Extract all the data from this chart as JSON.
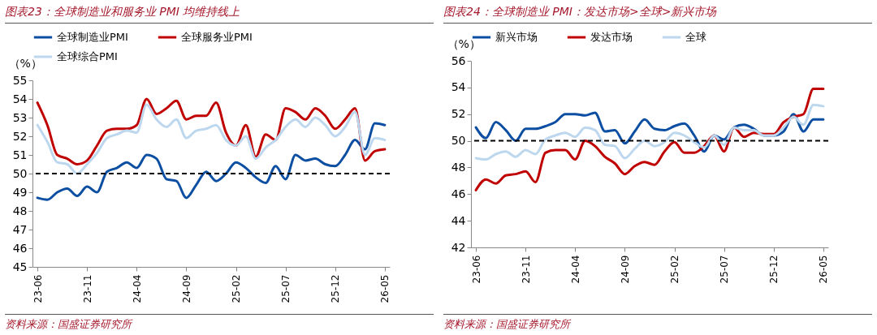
{
  "chart_data": [
    {
      "type": "line",
      "title": "图表23：全球制造业和服务业 PMI 均维持线上",
      "ylabel": "（%）",
      "legend": "top",
      "ylim": [
        45,
        55
      ],
      "yticks": [
        45,
        46,
        47,
        48,
        49,
        50,
        51,
        52,
        53,
        54,
        55
      ],
      "categories": [
        "23-06",
        null,
        null,
        null,
        null,
        "23-11",
        null,
        null,
        null,
        null,
        "24-04",
        null,
        null,
        null,
        null,
        "24-09",
        null,
        null,
        null,
        null,
        "25-02",
        null,
        null,
        null,
        null,
        "25-07",
        null,
        null,
        null,
        null,
        "25-12",
        null,
        null,
        null,
        null,
        "26-05"
      ],
      "series": [
        {
          "name": "全球制造业PMI",
          "color": "#0b4ea2",
          "values": [
            48.7,
            48.6,
            49.0,
            49.2,
            48.8,
            49.3,
            49.0,
            50.1,
            50.3,
            50.6,
            50.3,
            51.0,
            50.8,
            49.7,
            49.6,
            48.7,
            49.4,
            50.1,
            49.6,
            50.0,
            50.6,
            50.3,
            49.8,
            49.5,
            50.4,
            49.7,
            51.0,
            50.7,
            50.8,
            50.5,
            50.4,
            51.0,
            51.8,
            51.3,
            52.7,
            52.6
          ]
        },
        {
          "name": "全球服务业PMI",
          "color": "#c00000",
          "values": [
            53.8,
            52.6,
            51.0,
            50.8,
            50.5,
            50.7,
            51.5,
            52.3,
            52.4,
            52.4,
            52.6,
            54.0,
            53.2,
            53.5,
            53.9,
            52.9,
            53.1,
            53.1,
            53.8,
            52.2,
            51.5,
            52.6,
            50.9,
            52.1,
            51.8,
            53.5,
            53.3,
            52.9,
            53.5,
            53.1,
            52.4,
            52.9,
            53.5,
            50.7,
            51.2,
            51.3
          ]
        },
        {
          "name": "全球综合PMI",
          "color": "#bdd7ee",
          "values": [
            52.6,
            51.7,
            50.6,
            50.5,
            50.0,
            50.5,
            51.1,
            51.9,
            52.1,
            52.3,
            52.2,
            53.7,
            52.9,
            52.5,
            52.9,
            51.9,
            52.3,
            52.4,
            52.6,
            51.8,
            51.5,
            52.0,
            50.8,
            51.4,
            51.8,
            52.5,
            52.9,
            52.5,
            53.0,
            52.6,
            52.0,
            52.5,
            53.3,
            51.0,
            51.9,
            51.8
          ]
        }
      ],
      "ref_lines": [
        {
          "axis": "y",
          "value": 50,
          "color": "#000000",
          "line_style": "dashed"
        }
      ],
      "annotations": [
        "资料来源：国盛证券研究所"
      ]
    },
    {
      "type": "line",
      "title": "图表24：全球制造业 PMI：发达市场>全球>新兴市场",
      "ylabel": "（%）",
      "legend": "top",
      "ylim": [
        42,
        56
      ],
      "yticks": [
        42,
        44,
        46,
        48,
        50,
        52,
        54,
        56
      ],
      "categories": [
        "23-06",
        null,
        null,
        null,
        null,
        "23-11",
        null,
        null,
        null,
        null,
        "24-04",
        null,
        null,
        null,
        null,
        "24-09",
        null,
        null,
        null,
        null,
        "25-02",
        null,
        null,
        null,
        null,
        "25-07",
        null,
        null,
        null,
        null,
        "25-12",
        null,
        null,
        null,
        null,
        "26-05"
      ],
      "series": [
        {
          "name": "新兴市场",
          "color": "#0b4ea2",
          "values": [
            51.0,
            50.2,
            51.4,
            50.8,
            50.0,
            50.9,
            50.9,
            51.1,
            51.4,
            52.0,
            52.0,
            51.9,
            52.1,
            50.7,
            50.8,
            49.8,
            50.7,
            51.6,
            50.9,
            50.8,
            51.1,
            51.3,
            50.4,
            49.2,
            50.4,
            50.1,
            51.0,
            51.2,
            50.9,
            50.4,
            50.4,
            50.7,
            52.0,
            50.7,
            51.6,
            51.6
          ]
        },
        {
          "name": "发达市场",
          "color": "#c00000",
          "values": [
            46.3,
            47.1,
            46.8,
            47.4,
            47.5,
            47.7,
            46.9,
            49.1,
            49.3,
            49.3,
            48.6,
            50.0,
            49.6,
            48.8,
            48.3,
            47.5,
            48.1,
            48.4,
            48.2,
            49.2,
            49.9,
            49.1,
            49.1,
            49.6,
            50.4,
            49.2,
            51.0,
            50.3,
            50.6,
            50.5,
            50.5,
            51.4,
            51.8,
            52.0,
            53.9,
            53.9
          ]
        },
        {
          "name": "全球",
          "color": "#bdd7ee",
          "values": [
            48.7,
            48.6,
            49.0,
            49.2,
            48.8,
            49.3,
            49.0,
            50.1,
            50.4,
            50.6,
            50.3,
            51.0,
            50.8,
            49.7,
            49.6,
            48.7,
            49.4,
            50.0,
            49.6,
            49.9,
            50.6,
            50.4,
            49.9,
            49.5,
            50.4,
            49.7,
            51.0,
            50.8,
            50.8,
            50.4,
            50.4,
            51.0,
            51.8,
            51.2,
            52.7,
            52.6
          ]
        }
      ],
      "ref_lines": [
        {
          "axis": "y",
          "value": 50,
          "color": "#000000",
          "line_style": "dashed"
        }
      ],
      "annotations": [
        "资料来源：国盛证券研究所"
      ]
    }
  ]
}
